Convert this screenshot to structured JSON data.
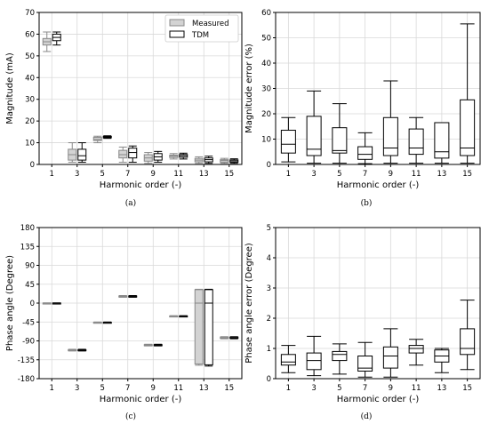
{
  "colors": {
    "measured_fill": "#d3d3d3",
    "measured_edge": "#888888",
    "tdm_fill": "#ffffff",
    "tdm_edge": "#000000",
    "grid": "#d9d9d9",
    "axis": "#000000"
  },
  "chart_data": [
    {
      "type": "box",
      "caption": "(a)",
      "xlabel": "Harmonic order (-)",
      "ylabel": "Magnitude (mA)",
      "ylim": [
        0,
        70
      ],
      "yticks": [
        "0",
        "10",
        "20",
        "30",
        "40",
        "50",
        "60",
        "70"
      ],
      "categories": [
        "1",
        "3",
        "5",
        "7",
        "9",
        "11",
        "13",
        "15"
      ],
      "grid": "on",
      "legend": {
        "placement": "top-right",
        "entries": [
          "Measured",
          "TDM"
        ]
      },
      "series": [
        {
          "name": "Measured",
          "boxes": [
            {
              "min": 52,
              "q1": 55,
              "median": 56.5,
              "q3": 58,
              "max": 61
            },
            {
              "min": 1,
              "q1": 2,
              "median": 4.5,
              "q3": 7,
              "max": 10
            },
            {
              "min": 10,
              "q1": 11,
              "median": 11.5,
              "q3": 12.5,
              "max": 13
            },
            {
              "min": 1,
              "q1": 3,
              "median": 4.5,
              "q3": 6.5,
              "max": 8
            },
            {
              "min": 0.5,
              "q1": 1.5,
              "median": 3,
              "q3": 4.5,
              "max": 5.5
            },
            {
              "min": 2.5,
              "q1": 3.2,
              "median": 3.8,
              "q3": 4.3,
              "max": 5
            },
            {
              "min": 0.5,
              "q1": 1.2,
              "median": 2,
              "q3": 2.8,
              "max": 3.5
            },
            {
              "min": 0.5,
              "q1": 1,
              "median": 1.8,
              "q3": 2.2,
              "max": 2.8
            }
          ]
        },
        {
          "name": "TDM",
          "boxes": [
            {
              "min": 55,
              "q1": 57,
              "median": 58.5,
              "q3": 60,
              "max": 61
            },
            {
              "min": 1,
              "q1": 2,
              "median": 4,
              "q3": 7,
              "max": 10
            },
            {
              "min": 12,
              "q1": 12.3,
              "median": 12.6,
              "q3": 12.9,
              "max": 13.2
            },
            {
              "min": 1,
              "q1": 3,
              "median": 5.5,
              "q3": 7.5,
              "max": 8.5
            },
            {
              "min": 1,
              "q1": 2,
              "median": 3.5,
              "q3": 5,
              "max": 6
            },
            {
              "min": 2.5,
              "q1": 3.3,
              "median": 4,
              "q3": 4.6,
              "max": 5.2
            },
            {
              "min": 0.5,
              "q1": 1.2,
              "median": 2.2,
              "q3": 3,
              "max": 3.8
            },
            {
              "min": 0.5,
              "q1": 1,
              "median": 1.6,
              "q3": 2.1,
              "max": 2.6
            }
          ]
        }
      ]
    },
    {
      "type": "box",
      "caption": "(b)",
      "xlabel": "Harmonic order (-)",
      "ylabel": "Magnitude error (%)",
      "ylim": [
        0,
        60
      ],
      "yticks": [
        "0",
        "10",
        "20",
        "30",
        "40",
        "50",
        "60"
      ],
      "categories": [
        "1",
        "3",
        "5",
        "7",
        "9",
        "11",
        "13",
        "15"
      ],
      "grid": "on",
      "series": [
        {
          "name": "",
          "boxes": [
            {
              "min": 1,
              "q1": 4.5,
              "median": 8,
              "q3": 13.5,
              "max": 18.5
            },
            {
              "min": 0.5,
              "q1": 3.5,
              "median": 6,
              "q3": 19,
              "max": 29
            },
            {
              "min": 0.5,
              "q1": 4.5,
              "median": 5.5,
              "q3": 14.5,
              "max": 24
            },
            {
              "min": 0.3,
              "q1": 2,
              "median": 4,
              "q3": 7,
              "max": 12.5
            },
            {
              "min": 0.5,
              "q1": 3.5,
              "median": 6.5,
              "q3": 18.5,
              "max": 33
            },
            {
              "min": 0.5,
              "q1": 4,
              "median": 6.5,
              "q3": 14,
              "max": 18.5
            },
            {
              "min": 0.5,
              "q1": 2.5,
              "median": 5,
              "q3": 16.5,
              "max": 16.5
            },
            {
              "min": 0.5,
              "q1": 3.5,
              "median": 6.5,
              "q3": 25.5,
              "max": 55.5
            }
          ]
        }
      ]
    },
    {
      "type": "box",
      "caption": "(c)",
      "xlabel": "Harmonic order (-)",
      "ylabel": "Phase angle (Degree)",
      "ylim": [
        -180,
        180
      ],
      "yticks": [
        "180",
        "135",
        "90",
        "45",
        "0",
        "-45",
        "-90",
        "-135",
        "-180"
      ],
      "categories": [
        "1",
        "3",
        "5",
        "7",
        "9",
        "11",
        "13",
        "15"
      ],
      "grid": "on",
      "series": [
        {
          "name": "Measured",
          "boxes": [
            {
              "min": -0.5,
              "q1": -0.3,
              "median": 0,
              "q3": 0.3,
              "max": 0.5
            },
            {
              "min": -114,
              "q1": -113,
              "median": -112,
              "q3": -111,
              "max": -110
            },
            {
              "min": -47,
              "q1": -46.5,
              "median": -46,
              "q3": -45.5,
              "max": -45
            },
            {
              "min": 14,
              "q1": 15,
              "median": 16,
              "q3": 17,
              "max": 18
            },
            {
              "min": -102,
              "q1": -101,
              "median": -100,
              "q3": -99,
              "max": -98
            },
            {
              "min": -32,
              "q1": -31.5,
              "median": -31,
              "q3": -30.5,
              "max": -30
            },
            {
              "min": -148,
              "q1": -145,
              "median": 0,
              "q3": 32,
              "max": 33
            },
            {
              "min": -85,
              "q1": -84,
              "median": -83,
              "q3": -81,
              "max": -80
            }
          ]
        },
        {
          "name": "TDM",
          "boxes": [
            {
              "min": -0.5,
              "q1": -0.3,
              "median": 0,
              "q3": 0.3,
              "max": 0.5
            },
            {
              "min": -114,
              "q1": -113,
              "median": -112,
              "q3": -111,
              "max": -110
            },
            {
              "min": -47,
              "q1": -46.5,
              "median": -46,
              "q3": -45.5,
              "max": -45
            },
            {
              "min": 14,
              "q1": 15,
              "median": 16,
              "q3": 17,
              "max": 18
            },
            {
              "min": -102,
              "q1": -101,
              "median": -100,
              "q3": -99,
              "max": -98
            },
            {
              "min": -32,
              "q1": -31.5,
              "median": -31,
              "q3": -30.5,
              "max": -30
            },
            {
              "min": -150,
              "q1": -147,
              "median": 0,
              "q3": 32,
              "max": 33
            },
            {
              "min": -85,
              "q1": -84,
              "median": -83,
              "q3": -81,
              "max": -80
            }
          ]
        }
      ]
    },
    {
      "type": "box",
      "caption": "(d)",
      "xlabel": "Harmonic order (-)",
      "ylabel": "Phase angle error (Degree)",
      "ylim": [
        0,
        5
      ],
      "yticks": [
        "0",
        "1",
        "2",
        "3",
        "4",
        "5"
      ],
      "categories": [
        "1",
        "3",
        "5",
        "7",
        "9",
        "11",
        "13",
        "15"
      ],
      "grid": "on",
      "series": [
        {
          "name": "",
          "boxes": [
            {
              "min": 0.2,
              "q1": 0.45,
              "median": 0.55,
              "q3": 0.8,
              "max": 1.1
            },
            {
              "min": 0.1,
              "q1": 0.3,
              "median": 0.6,
              "q3": 0.85,
              "max": 1.4
            },
            {
              "min": 0.15,
              "q1": 0.6,
              "median": 0.8,
              "q3": 0.9,
              "max": 1.15
            },
            {
              "min": 0.05,
              "q1": 0.25,
              "median": 0.35,
              "q3": 0.75,
              "max": 1.2
            },
            {
              "min": 0.05,
              "q1": 0.35,
              "median": 0.75,
              "q3": 1.05,
              "max": 1.65
            },
            {
              "min": 0.45,
              "q1": 0.85,
              "median": 1.0,
              "q3": 1.1,
              "max": 1.3
            },
            {
              "min": 0.2,
              "q1": 0.55,
              "median": 0.75,
              "q3": 0.95,
              "max": 1.0
            },
            {
              "min": 0.3,
              "q1": 0.8,
              "median": 1.0,
              "q3": 1.65,
              "max": 2.6
            }
          ]
        }
      ]
    }
  ]
}
